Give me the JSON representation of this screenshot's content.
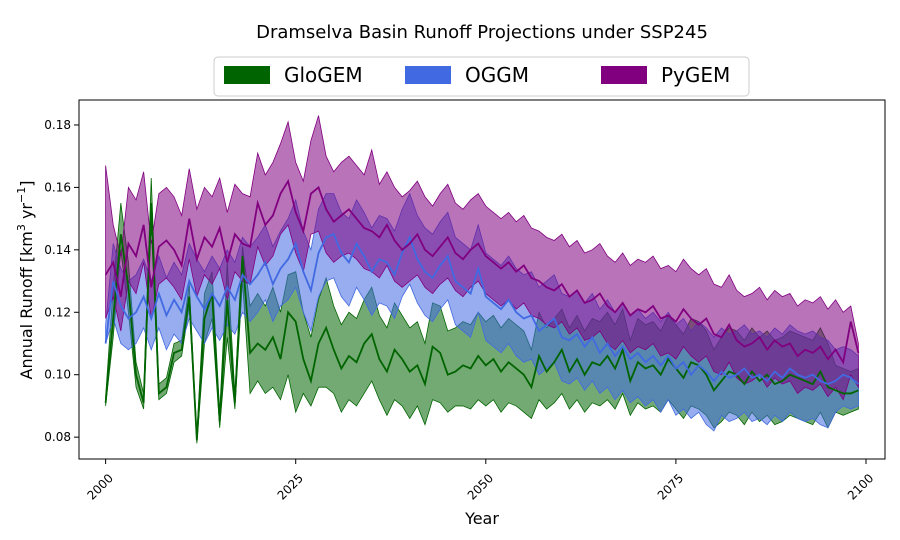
{
  "chart_data": {
    "type": "area",
    "title": "Dramselva Basin Runoff Projections under SSP245",
    "xlabel": "Year",
    "ylabel": {
      "main": "Annual Runoff [km",
      "sup1": "3",
      "mid": " yr",
      "sup2": "−1",
      "end": "]"
    },
    "xlim": [
      1996.5,
      2102.5
    ],
    "ylim": [
      0.073,
      0.188
    ],
    "xticks": [
      2000,
      2025,
      2050,
      2075,
      2100
    ],
    "xtick_labels": [
      "2000",
      "2025",
      "2050",
      "2075",
      "2100"
    ],
    "yticks": [
      0.08,
      0.1,
      0.12,
      0.14,
      0.16,
      0.18
    ],
    "ytick_labels": [
      "0.08",
      "0.10",
      "0.12",
      "0.14",
      "0.16",
      "0.18"
    ],
    "legend": {
      "placement": "top-center",
      "entries": [
        "GloGEM",
        "OGGM",
        "PyGEM"
      ]
    },
    "x": [
      2000,
      2001,
      2002,
      2003,
      2004,
      2005,
      2006,
      2007,
      2008,
      2009,
      2010,
      2011,
      2012,
      2013,
      2014,
      2015,
      2016,
      2017,
      2018,
      2019,
      2020,
      2021,
      2022,
      2023,
      2024,
      2025,
      2026,
      2027,
      2028,
      2029,
      2030,
      2031,
      2032,
      2033,
      2034,
      2035,
      2036,
      2037,
      2038,
      2039,
      2040,
      2041,
      2042,
      2043,
      2044,
      2045,
      2046,
      2047,
      2048,
      2049,
      2050,
      2051,
      2052,
      2053,
      2054,
      2055,
      2056,
      2057,
      2058,
      2059,
      2060,
      2061,
      2062,
      2063,
      2064,
      2065,
      2066,
      2067,
      2068,
      2069,
      2070,
      2071,
      2072,
      2073,
      2074,
      2075,
      2076,
      2077,
      2078,
      2079,
      2080,
      2081,
      2082,
      2083,
      2084,
      2085,
      2086,
      2087,
      2088,
      2089,
      2090,
      2091,
      2092,
      2093,
      2094,
      2095,
      2096,
      2097,
      2098,
      2099
    ],
    "series": [
      {
        "name": "GloGEM",
        "color": "#006400",
        "mean": [
          0.091,
          0.118,
          0.145,
          0.128,
          0.1,
          0.091,
          0.155,
          0.094,
          0.096,
          0.107,
          0.108,
          0.125,
          0.079,
          0.118,
          0.126,
          0.085,
          0.124,
          0.091,
          0.138,
          0.107,
          0.11,
          0.108,
          0.112,
          0.105,
          0.12,
          0.117,
          0.105,
          0.098,
          0.11,
          0.115,
          0.108,
          0.102,
          0.106,
          0.104,
          0.11,
          0.113,
          0.105,
          0.101,
          0.108,
          0.105,
          0.101,
          0.103,
          0.097,
          0.109,
          0.107,
          0.1,
          0.101,
          0.103,
          0.102,
          0.106,
          0.103,
          0.105,
          0.101,
          0.104,
          0.102,
          0.1,
          0.096,
          0.106,
          0.101,
          0.104,
          0.108,
          0.101,
          0.105,
          0.1,
          0.104,
          0.103,
          0.106,
          0.102,
          0.108,
          0.098,
          0.104,
          0.102,
          0.103,
          0.1,
          0.105,
          0.102,
          0.099,
          0.104,
          0.103,
          0.1,
          0.095,
          0.098,
          0.101,
          0.1,
          0.097,
          0.101,
          0.098,
          0.1,
          0.097,
          0.098,
          0.1,
          0.099,
          0.098,
          0.097,
          0.101,
          0.096,
          0.095,
          0.094,
          0.094,
          0.095
        ],
        "lower": [
          0.09,
          0.112,
          0.14,
          0.12,
          0.096,
          0.089,
          0.148,
          0.092,
          0.094,
          0.104,
          0.106,
          0.122,
          0.078,
          0.11,
          0.118,
          0.083,
          0.112,
          0.089,
          0.13,
          0.094,
          0.098,
          0.094,
          0.096,
          0.092,
          0.1,
          0.088,
          0.094,
          0.09,
          0.096,
          0.096,
          0.094,
          0.088,
          0.092,
          0.09,
          0.094,
          0.098,
          0.092,
          0.087,
          0.092,
          0.09,
          0.086,
          0.09,
          0.084,
          0.092,
          0.091,
          0.088,
          0.09,
          0.09,
          0.089,
          0.092,
          0.09,
          0.092,
          0.088,
          0.091,
          0.09,
          0.088,
          0.086,
          0.092,
          0.089,
          0.091,
          0.094,
          0.089,
          0.092,
          0.088,
          0.091,
          0.09,
          0.092,
          0.089,
          0.094,
          0.087,
          0.091,
          0.089,
          0.09,
          0.088,
          0.092,
          0.089,
          0.086,
          0.09,
          0.089,
          0.087,
          0.083,
          0.085,
          0.088,
          0.087,
          0.084,
          0.088,
          0.085,
          0.087,
          0.084,
          0.085,
          0.087,
          0.086,
          0.085,
          0.084,
          0.088,
          0.083,
          0.088,
          0.087,
          0.088,
          0.089
        ],
        "upper": [
          0.093,
          0.128,
          0.155,
          0.136,
          0.104,
          0.094,
          0.163,
          0.097,
          0.099,
          0.11,
          0.111,
          0.129,
          0.081,
          0.126,
          0.133,
          0.088,
          0.136,
          0.094,
          0.141,
          0.122,
          0.126,
          0.122,
          0.128,
          0.12,
          0.132,
          0.133,
          0.12,
          0.112,
          0.124,
          0.131,
          0.122,
          0.116,
          0.12,
          0.118,
          0.124,
          0.128,
          0.119,
          0.115,
          0.123,
          0.119,
          0.115,
          0.117,
          0.11,
          0.123,
          0.122,
          0.114,
          0.115,
          0.117,
          0.116,
          0.12,
          0.117,
          0.119,
          0.115,
          0.118,
          0.116,
          0.114,
          0.108,
          0.12,
          0.115,
          0.118,
          0.121,
          0.115,
          0.119,
          0.114,
          0.118,
          0.117,
          0.12,
          0.116,
          0.121,
          0.111,
          0.118,
          0.116,
          0.117,
          0.114,
          0.119,
          0.116,
          0.113,
          0.118,
          0.117,
          0.114,
          0.108,
          0.112,
          0.115,
          0.114,
          0.111,
          0.115,
          0.112,
          0.114,
          0.111,
          0.112,
          0.114,
          0.113,
          0.112,
          0.111,
          0.115,
          0.11,
          0.103,
          0.102,
          0.101,
          0.102
        ]
      },
      {
        "name": "OGGM",
        "color": "#4169e1",
        "mean": [
          0.11,
          0.13,
          0.122,
          0.118,
          0.12,
          0.125,
          0.118,
          0.126,
          0.119,
          0.124,
          0.12,
          0.13,
          0.125,
          0.121,
          0.126,
          0.122,
          0.128,
          0.124,
          0.132,
          0.129,
          0.132,
          0.136,
          0.129,
          0.134,
          0.137,
          0.142,
          0.133,
          0.127,
          0.139,
          0.144,
          0.145,
          0.139,
          0.136,
          0.142,
          0.138,
          0.133,
          0.137,
          0.136,
          0.132,
          0.139,
          0.144,
          0.137,
          0.133,
          0.131,
          0.135,
          0.138,
          0.13,
          0.128,
          0.126,
          0.134,
          0.125,
          0.123,
          0.121,
          0.124,
          0.12,
          0.118,
          0.119,
          0.114,
          0.116,
          0.118,
          0.112,
          0.111,
          0.113,
          0.109,
          0.112,
          0.107,
          0.11,
          0.106,
          0.109,
          0.105,
          0.107,
          0.104,
          0.106,
          0.103,
          0.106,
          0.102,
          0.104,
          0.1,
          0.103,
          0.101,
          0.098,
          0.101,
          0.099,
          0.1,
          0.102,
          0.099,
          0.1,
          0.098,
          0.101,
          0.099,
          0.102,
          0.1,
          0.099,
          0.1,
          0.098,
          0.097,
          0.098,
          0.1,
          0.099,
          0.097
        ],
        "lower": [
          0.11,
          0.118,
          0.11,
          0.108,
          0.11,
          0.115,
          0.108,
          0.115,
          0.108,
          0.113,
          0.11,
          0.118,
          0.114,
          0.11,
          0.115,
          0.111,
          0.116,
          0.113,
          0.12,
          0.117,
          0.12,
          0.124,
          0.117,
          0.122,
          0.124,
          0.128,
          0.12,
          0.114,
          0.125,
          0.13,
          0.131,
          0.125,
          0.122,
          0.128,
          0.124,
          0.119,
          0.123,
          0.122,
          0.118,
          0.125,
          0.129,
          0.123,
          0.119,
          0.117,
          0.121,
          0.124,
          0.116,
          0.114,
          0.112,
          0.12,
          0.111,
          0.109,
          0.107,
          0.11,
          0.106,
          0.104,
          0.105,
          0.1,
          0.102,
          0.104,
          0.098,
          0.097,
          0.099,
          0.095,
          0.098,
          0.094,
          0.096,
          0.092,
          0.095,
          0.091,
          0.093,
          0.09,
          0.092,
          0.088,
          0.092,
          0.087,
          0.089,
          0.086,
          0.088,
          0.084,
          0.082,
          0.087,
          0.085,
          0.086,
          0.088,
          0.085,
          0.086,
          0.084,
          0.087,
          0.085,
          0.088,
          0.086,
          0.085,
          0.086,
          0.084,
          0.083,
          0.088,
          0.09,
          0.089,
          0.09
        ],
        "upper": [
          0.116,
          0.142,
          0.134,
          0.13,
          0.132,
          0.137,
          0.13,
          0.138,
          0.131,
          0.136,
          0.132,
          0.142,
          0.137,
          0.133,
          0.138,
          0.134,
          0.14,
          0.136,
          0.144,
          0.141,
          0.144,
          0.148,
          0.141,
          0.146,
          0.15,
          0.156,
          0.146,
          0.14,
          0.153,
          0.158,
          0.158,
          0.152,
          0.15,
          0.156,
          0.152,
          0.147,
          0.151,
          0.15,
          0.146,
          0.153,
          0.158,
          0.151,
          0.147,
          0.145,
          0.149,
          0.152,
          0.144,
          0.142,
          0.14,
          0.148,
          0.139,
          0.137,
          0.135,
          0.138,
          0.134,
          0.132,
          0.133,
          0.128,
          0.13,
          0.132,
          0.126,
          0.125,
          0.127,
          0.123,
          0.126,
          0.121,
          0.124,
          0.12,
          0.123,
          0.119,
          0.121,
          0.118,
          0.12,
          0.117,
          0.12,
          0.116,
          0.118,
          0.114,
          0.117,
          0.115,
          0.112,
          0.115,
          0.113,
          0.114,
          0.116,
          0.113,
          0.114,
          0.112,
          0.115,
          0.113,
          0.116,
          0.114,
          0.113,
          0.114,
          0.112,
          0.111,
          0.108,
          0.109,
          0.108,
          0.106
        ]
      },
      {
        "name": "PyGEM",
        "color": "#800080",
        "mean": [
          0.132,
          0.136,
          0.125,
          0.142,
          0.138,
          0.148,
          0.128,
          0.141,
          0.143,
          0.14,
          0.135,
          0.15,
          0.137,
          0.144,
          0.141,
          0.147,
          0.136,
          0.145,
          0.142,
          0.141,
          0.155,
          0.148,
          0.151,
          0.158,
          0.162,
          0.152,
          0.146,
          0.158,
          0.16,
          0.153,
          0.149,
          0.151,
          0.153,
          0.15,
          0.147,
          0.146,
          0.144,
          0.148,
          0.143,
          0.14,
          0.142,
          0.145,
          0.14,
          0.138,
          0.141,
          0.144,
          0.139,
          0.137,
          0.14,
          0.142,
          0.138,
          0.136,
          0.134,
          0.136,
          0.133,
          0.135,
          0.131,
          0.13,
          0.128,
          0.127,
          0.129,
          0.125,
          0.127,
          0.123,
          0.124,
          0.126,
          0.122,
          0.12,
          0.123,
          0.119,
          0.121,
          0.12,
          0.122,
          0.118,
          0.119,
          0.117,
          0.121,
          0.118,
          0.116,
          0.118,
          0.113,
          0.112,
          0.116,
          0.111,
          0.109,
          0.11,
          0.112,
          0.108,
          0.111,
          0.109,
          0.11,
          0.106,
          0.108,
          0.107,
          0.109,
          0.105,
          0.108,
          0.104,
          0.117,
          0.107
        ],
        "lower": [
          0.118,
          0.125,
          0.114,
          0.13,
          0.126,
          0.136,
          0.118,
          0.129,
          0.131,
          0.128,
          0.124,
          0.137,
          0.125,
          0.132,
          0.129,
          0.134,
          0.124,
          0.133,
          0.13,
          0.129,
          0.141,
          0.135,
          0.138,
          0.145,
          0.148,
          0.139,
          0.133,
          0.145,
          0.146,
          0.139,
          0.136,
          0.138,
          0.139,
          0.137,
          0.134,
          0.133,
          0.131,
          0.135,
          0.13,
          0.128,
          0.13,
          0.132,
          0.128,
          0.126,
          0.129,
          0.131,
          0.127,
          0.125,
          0.128,
          0.13,
          0.126,
          0.124,
          0.122,
          0.124,
          0.121,
          0.123,
          0.119,
          0.118,
          0.116,
          0.115,
          0.117,
          0.113,
          0.115,
          0.111,
          0.112,
          0.114,
          0.11,
          0.108,
          0.111,
          0.107,
          0.109,
          0.108,
          0.11,
          0.106,
          0.107,
          0.105,
          0.109,
          0.106,
          0.104,
          0.106,
          0.101,
          0.1,
          0.104,
          0.099,
          0.097,
          0.098,
          0.1,
          0.096,
          0.099,
          0.097,
          0.098,
          0.094,
          0.096,
          0.095,
          0.097,
          0.093,
          0.096,
          0.092,
          0.1,
          0.096
        ],
        "upper": [
          0.167,
          0.148,
          0.138,
          0.16,
          0.156,
          0.165,
          0.142,
          0.158,
          0.16,
          0.157,
          0.151,
          0.166,
          0.153,
          0.16,
          0.157,
          0.163,
          0.152,
          0.161,
          0.158,
          0.157,
          0.171,
          0.164,
          0.168,
          0.174,
          0.181,
          0.168,
          0.162,
          0.175,
          0.183,
          0.17,
          0.165,
          0.168,
          0.17,
          0.167,
          0.164,
          0.172,
          0.161,
          0.165,
          0.16,
          0.157,
          0.159,
          0.162,
          0.157,
          0.154,
          0.158,
          0.161,
          0.155,
          0.153,
          0.156,
          0.158,
          0.154,
          0.152,
          0.15,
          0.152,
          0.149,
          0.151,
          0.147,
          0.146,
          0.144,
          0.143,
          0.145,
          0.141,
          0.143,
          0.139,
          0.14,
          0.142,
          0.138,
          0.136,
          0.139,
          0.135,
          0.137,
          0.136,
          0.138,
          0.134,
          0.135,
          0.133,
          0.137,
          0.134,
          0.132,
          0.134,
          0.129,
          0.128,
          0.132,
          0.127,
          0.125,
          0.126,
          0.128,
          0.124,
          0.127,
          0.125,
          0.126,
          0.122,
          0.124,
          0.123,
          0.125,
          0.121,
          0.124,
          0.12,
          0.122,
          0.11
        ]
      }
    ]
  }
}
